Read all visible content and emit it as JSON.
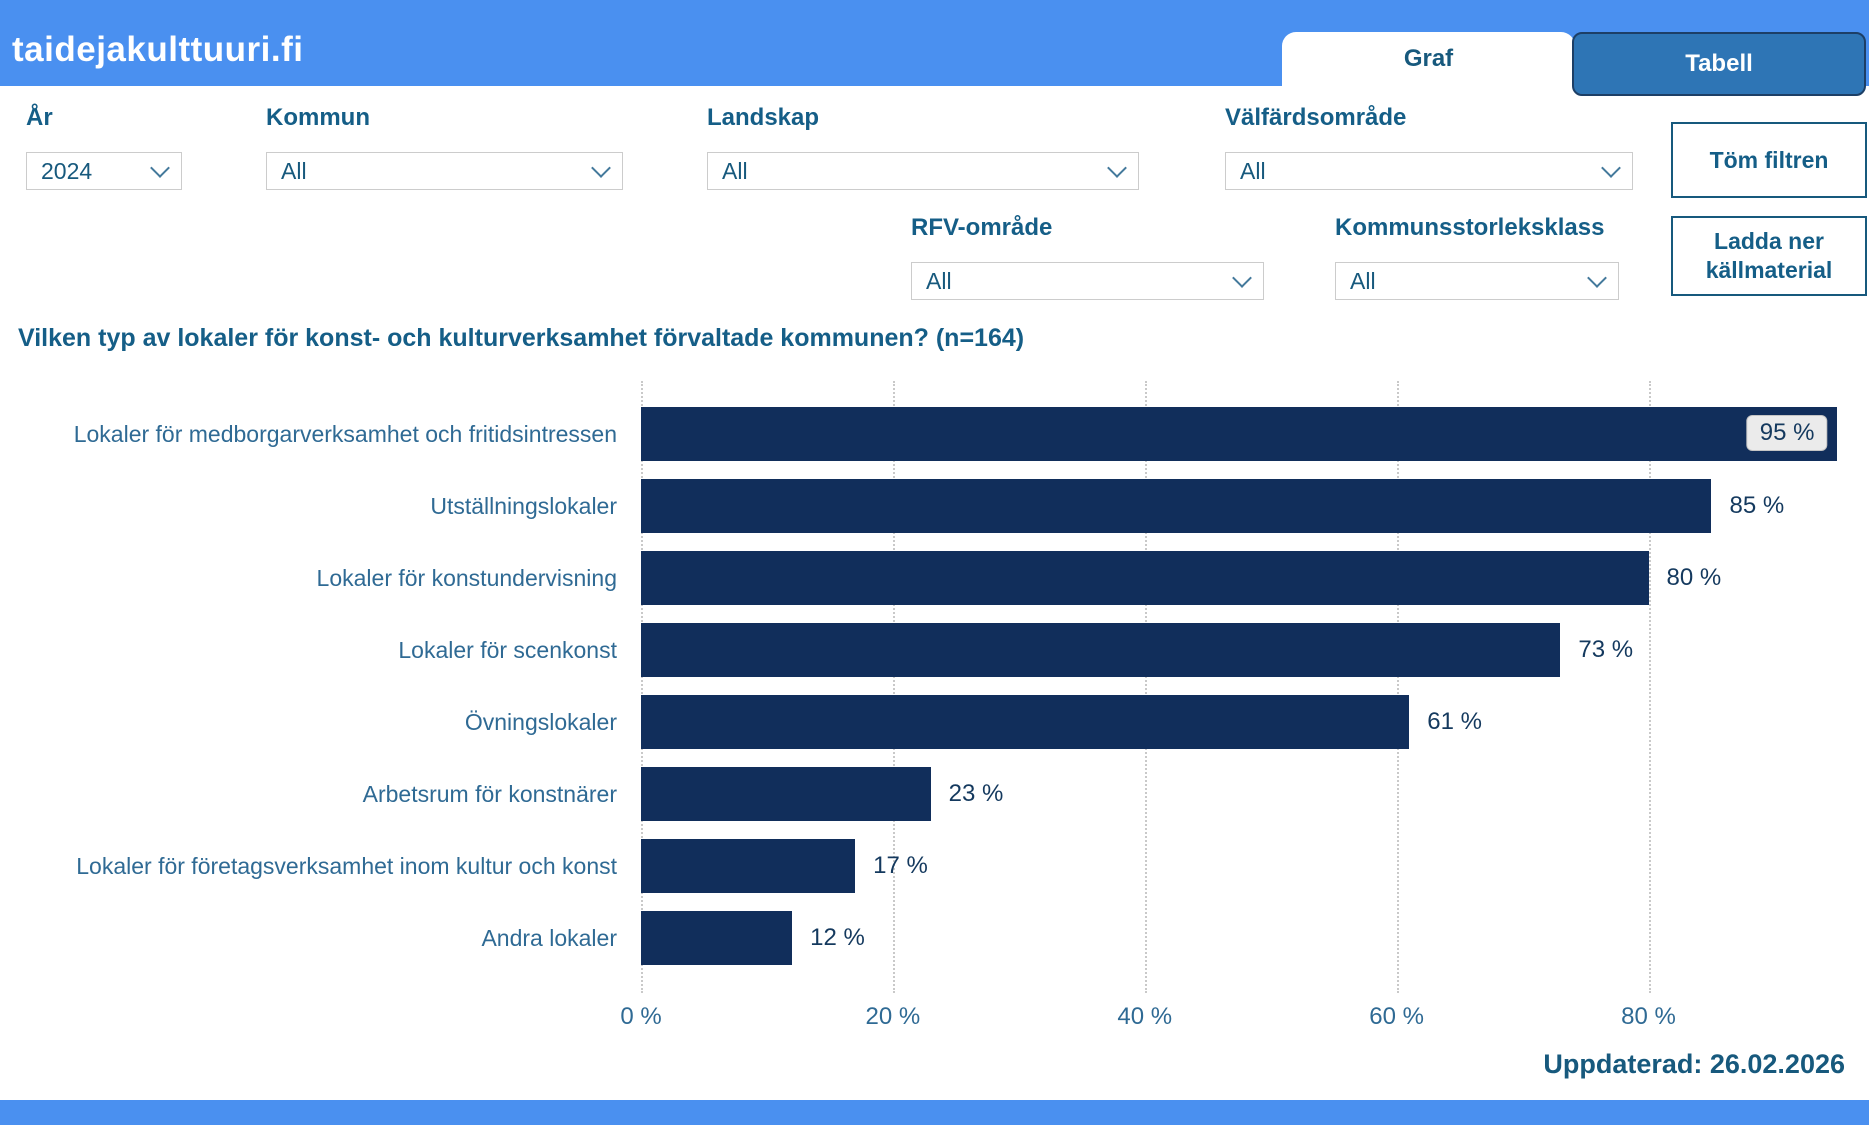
{
  "header": {
    "logo": "taidejakulttuuri.fi",
    "tabs": [
      {
        "label": "Graf",
        "active": true
      },
      {
        "label": "Tabell",
        "active": false
      }
    ]
  },
  "filters": {
    "row1": [
      {
        "label": "År",
        "value": "2024"
      },
      {
        "label": "Kommun",
        "value": "All"
      },
      {
        "label": "Landskap",
        "value": "All"
      },
      {
        "label": "Välfärdsområde",
        "value": "All"
      }
    ],
    "row2": [
      {
        "label": "RFV-område",
        "value": "All"
      },
      {
        "label": "Kommunsstorleksklass",
        "value": "All"
      }
    ],
    "clear_button": "Töm filtren",
    "download_button": "Ladda ner källmaterial"
  },
  "chart_data": {
    "type": "bar",
    "orientation": "horizontal",
    "title": "Vilken typ av lokaler för konst- och kulturverksamhet förvaltade kommunen? (n=164)",
    "categories": [
      "Lokaler för medborgarverksamhet och fritidsintressen",
      "Utställningslokaler",
      "Lokaler för konstundervisning",
      "Lokaler för scenkonst",
      "Övningslokaler",
      "Arbetsrum för konstnärer",
      "Lokaler för företagsverksamhet inom kultur och konst",
      "Andra lokaler"
    ],
    "values": [
      95,
      85,
      80,
      73,
      61,
      23,
      17,
      12
    ],
    "value_suffix": " %",
    "value_labels": [
      "95 %",
      "85 %",
      "80 %",
      "73 %",
      "61 %",
      "23 %",
      "17 %",
      "12 %"
    ],
    "x_ticks": [
      0,
      20,
      40,
      60,
      80
    ],
    "x_tick_labels": [
      "0 %",
      "20 %",
      "40 %",
      "60 %",
      "80 %"
    ],
    "xlim": [
      0,
      100
    ],
    "xlabel": "",
    "ylabel": "",
    "grid": "dotted-vertical",
    "legend": "none"
  },
  "footer": {
    "updated": "Uppdaterad: 26.02.2026"
  },
  "colors": {
    "brand_blue": "#4a90f0",
    "tab_button_blue": "#2e75b5",
    "bar_navy": "#112e5b",
    "heading_teal": "#155e87",
    "category_label": "#2f6a94"
  }
}
